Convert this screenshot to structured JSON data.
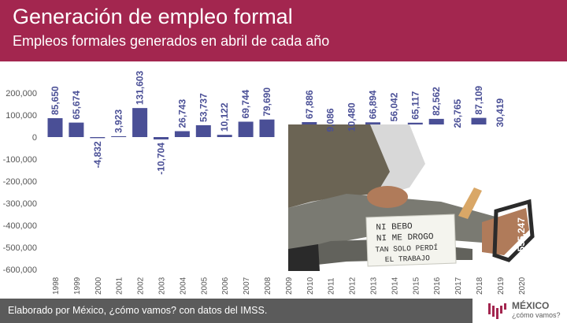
{
  "header": {
    "title": "Generación de empleo formal",
    "subtitle": "Empleos formales generados en abril de cada año"
  },
  "footer": {
    "source": "Elaborado por México, ¿cómo vamos? con datos del IMSS.",
    "logo_main": "MÉXICO",
    "logo_sub": "¿cómo vamos?"
  },
  "colors": {
    "header_bg": "#a3264f",
    "bar": "#4a4f96",
    "footer_bg": "#5b5b5b",
    "label": "#4a4f96",
    "axis_text": "#555555"
  },
  "chart_data": {
    "type": "bar",
    "categories": [
      "1998",
      "1999",
      "2000",
      "2001",
      "2002",
      "2003",
      "2004",
      "2005",
      "2006",
      "2007",
      "2008",
      "2009",
      "2010",
      "2011",
      "2012",
      "2013",
      "2014",
      "2015",
      "2016",
      "2017",
      "2018",
      "2019",
      "2020"
    ],
    "values": [
      85650,
      65674,
      -4832,
      3923,
      131603,
      -10704,
      26743,
      53737,
      10122,
      69744,
      79690,
      null,
      67886,
      9086,
      10480,
      66894,
      56042,
      65117,
      82562,
      26765,
      87109,
      30419,
      -555247
    ],
    "data_labels": [
      "85,650",
      "65,674",
      "-4,832",
      "3,923",
      "131,603",
      "-10,704",
      "26,743",
      "53,737",
      "10,122",
      "69,744",
      "79,690",
      "",
      "67,886",
      "9,086",
      "10,480",
      "66,894",
      "56,042",
      "65,117",
      "82,562",
      "26,765",
      "87,109",
      "30,419",
      "-555,247"
    ],
    "yticks": [
      200000,
      100000,
      0,
      -100000,
      -200000,
      -300000,
      -400000,
      -500000,
      -600000
    ],
    "ytick_labels": [
      "200,000",
      "100,000",
      "0",
      "-100,000",
      "-200,000",
      "-300,000",
      "-400,000",
      "-500,000",
      "-600,000"
    ],
    "ylim": [
      -600000,
      200000
    ],
    "grid": false,
    "legend": "none"
  },
  "photo": {
    "sign_lines": [
      "NI BEBO",
      "NI ME DROGO",
      "TAN SOLO PERDÍ",
      "EL TRABAJO"
    ]
  }
}
